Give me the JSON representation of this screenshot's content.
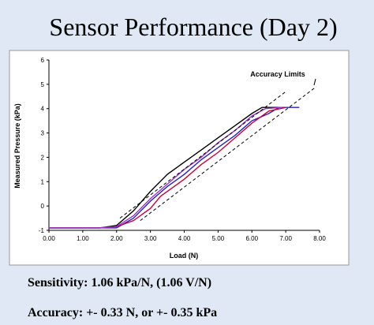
{
  "title": "Sensor Performance  (Day 2)",
  "notes": [
    "Sensitivity: 1.06 kPa/N,  (1.06 V/N)",
    "Accuracy: +- 0.33 N, or +- 0.35 kPa"
  ],
  "chart_data": {
    "type": "line",
    "x_label": "Load (N)",
    "y_label": "Measured Pressure (kPa)",
    "annotation": "Accuracy Limits",
    "xlim": [
      0,
      8
    ],
    "ylim": [
      -1,
      6
    ],
    "xticks": [
      {
        "value": 0,
        "label": "0.00"
      },
      {
        "value": 1,
        "label": "1.00"
      },
      {
        "value": 2,
        "label": "2.00"
      },
      {
        "value": 3,
        "label": "3.00"
      },
      {
        "value": 4,
        "label": "4.00"
      },
      {
        "value": 5,
        "label": "5.00"
      },
      {
        "value": 6,
        "label": "6.00"
      },
      {
        "value": 7,
        "label": "7.00"
      },
      {
        "value": 8,
        "label": "8.00"
      }
    ],
    "yticks": [
      -1,
      0,
      1,
      2,
      3,
      4,
      5,
      6
    ],
    "grid": false,
    "series": [
      {
        "color": "#000000",
        "x": [
          0,
          1,
          1.5,
          2,
          2.5,
          3,
          3.5,
          4,
          4.5,
          5,
          5.5,
          6,
          6.3,
          6.8
        ],
        "values": [
          -0.9,
          -0.9,
          -0.9,
          -0.8,
          -0.2,
          0.6,
          1.3,
          1.8,
          2.3,
          2.8,
          3.3,
          3.8,
          4.05,
          4.05
        ]
      },
      {
        "color": "#2222cc",
        "x": [
          0,
          1,
          1.5,
          2,
          2.5,
          3,
          3.5,
          4,
          4.5,
          5,
          5.5,
          6,
          6.5,
          6.8,
          7.4
        ],
        "values": [
          -0.9,
          -0.9,
          -0.9,
          -0.9,
          -0.5,
          0.2,
          0.8,
          1.3,
          1.9,
          2.4,
          2.9,
          3.5,
          3.8,
          4.05,
          4.05
        ]
      },
      {
        "color": "#cc0033",
        "x": [
          0,
          1,
          1.5,
          2,
          2.5,
          3,
          3.3,
          3.6,
          4,
          4.5,
          5,
          5.5,
          6,
          6.5,
          7
        ],
        "values": [
          -0.9,
          -0.9,
          -0.9,
          -0.85,
          -0.6,
          -0.1,
          0.4,
          0.7,
          1.1,
          1.7,
          2.2,
          2.8,
          3.4,
          3.9,
          4.05
        ]
      },
      {
        "color": "#9933cc",
        "x": [
          0,
          1,
          1.5,
          2,
          2.5,
          3,
          3.5,
          4,
          4.5,
          5,
          5.5,
          6,
          6.4,
          6.9
        ],
        "values": [
          -0.9,
          -0.9,
          -0.9,
          -0.85,
          -0.4,
          0.3,
          0.9,
          1.5,
          2.0,
          2.6,
          3.1,
          3.7,
          4.0,
          4.05
        ]
      },
      {
        "color": "#000000",
        "style": "dashed",
        "x": [
          2.1,
          7.0
        ],
        "values": [
          -0.5,
          4.7
        ]
      },
      {
        "color": "#000000",
        "style": "dashed",
        "x": [
          2.7,
          7.9
        ],
        "values": [
          -0.6,
          4.9
        ]
      }
    ]
  }
}
